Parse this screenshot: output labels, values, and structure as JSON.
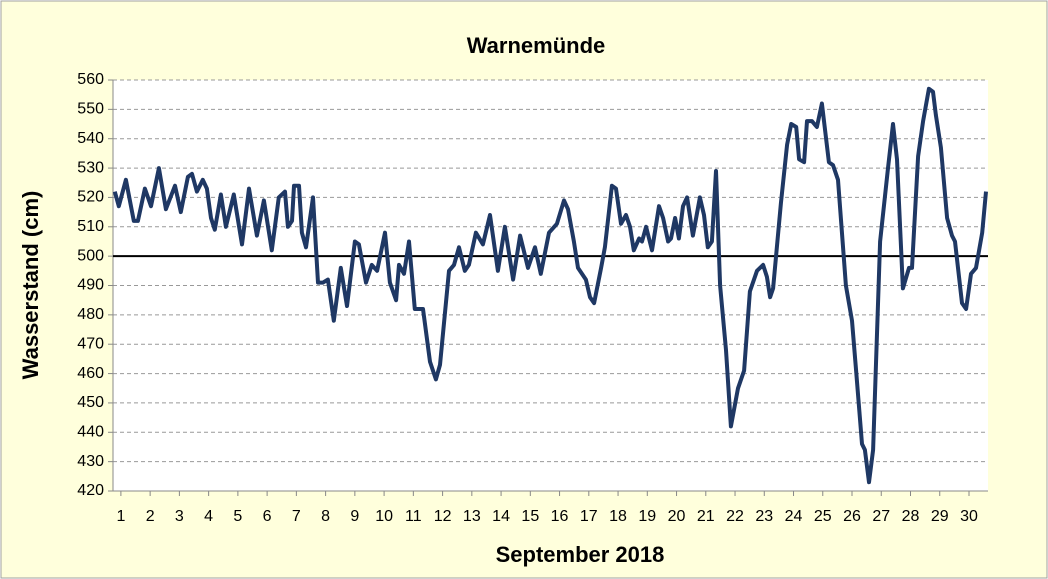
{
  "chart_data": {
    "type": "line",
    "title": "Warnemünde",
    "x_label": "September  2018",
    "y_label": "Wasserstand (cm)",
    "xlim": [
      0.73,
      30.65
    ],
    "ylim": [
      420,
      560
    ],
    "xticks": [
      1,
      2,
      3,
      4,
      5,
      6,
      7,
      8,
      9,
      10,
      11,
      12,
      13,
      14,
      15,
      16,
      17,
      18,
      19,
      20,
      21,
      22,
      23,
      24,
      25,
      26,
      27,
      28,
      29,
      30
    ],
    "yticks": [
      420,
      430,
      440,
      450,
      460,
      470,
      480,
      490,
      500,
      510,
      520,
      530,
      540,
      550,
      560
    ],
    "grid": true,
    "reference_line": 500,
    "series": [
      {
        "color": "#1f3864",
        "x": [
          0.79,
          0.93,
          1.17,
          1.44,
          1.58,
          1.82,
          2.03,
          2.3,
          2.54,
          2.85,
          3.05,
          3.29,
          3.43,
          3.6,
          3.8,
          3.94,
          4.08,
          4.21,
          4.42,
          4.59,
          4.86,
          5.14,
          5.38,
          5.65,
          5.89,
          6.16,
          6.4,
          6.61,
          6.71,
          6.85,
          6.92,
          7.09,
          7.19,
          7.33,
          7.57,
          7.74,
          7.91,
          8.08,
          8.28,
          8.52,
          8.73,
          9.0,
          9.14,
          9.38,
          9.58,
          9.76,
          10.03,
          10.2,
          10.41,
          10.51,
          10.68,
          10.85,
          11.05,
          11.33,
          11.57,
          11.77,
          11.91,
          12.22,
          12.39,
          12.56,
          12.76,
          12.9,
          13.14,
          13.38,
          13.62,
          13.89,
          14.13,
          14.41,
          14.65,
          14.92,
          15.16,
          15.36,
          15.64,
          15.91,
          16.15,
          16.29,
          16.49,
          16.63,
          16.9,
          17.04,
          17.18,
          17.42,
          17.55,
          17.79,
          17.93,
          18.1,
          18.27,
          18.41,
          18.54,
          18.72,
          18.82,
          18.96,
          19.16,
          19.4,
          19.54,
          19.71,
          19.81,
          19.95,
          20.08,
          20.22,
          20.36,
          20.56,
          20.8,
          20.94,
          21.07,
          21.21,
          21.35,
          21.49,
          21.69,
          21.86,
          22.1,
          22.31,
          22.51,
          22.75,
          22.96,
          23.09,
          23.2,
          23.3,
          23.57,
          23.78,
          23.92,
          24.09,
          24.19,
          24.36,
          24.46,
          24.63,
          24.8,
          24.97,
          25.21,
          25.35,
          25.52,
          25.79,
          26.0,
          26.14,
          26.34,
          26.44,
          26.58,
          26.72,
          26.96,
          27.23,
          27.4,
          27.54,
          27.74,
          27.95,
          28.05,
          28.26,
          28.43,
          28.63,
          28.77,
          28.87,
          29.04,
          29.25,
          29.42,
          29.52,
          29.76,
          29.9,
          30.07,
          30.24,
          30.45,
          30.58
        ],
        "values": [
          522,
          517,
          526,
          512,
          512,
          523,
          517,
          530,
          516,
          524,
          515,
          527,
          528,
          522,
          526,
          523,
          513,
          509,
          521,
          510,
          521,
          504,
          523,
          507,
          519,
          502,
          520,
          522,
          510,
          512,
          524,
          524,
          508,
          503,
          520,
          491,
          491,
          492,
          478,
          496,
          483,
          505,
          504,
          491,
          497,
          495,
          508,
          491,
          485,
          497,
          494,
          505,
          482,
          482,
          464,
          458,
          463,
          495,
          497,
          503,
          495,
          497,
          508,
          504,
          514,
          495,
          510,
          492,
          507,
          496,
          503,
          494,
          508,
          511,
          519,
          516,
          505,
          496,
          492,
          486,
          484,
          496,
          503,
          524,
          523,
          511,
          514,
          510,
          502,
          506,
          505,
          510,
          502,
          517,
          513,
          505,
          506,
          513,
          506,
          517,
          520,
          507,
          520,
          514,
          503,
          505,
          529,
          490,
          468,
          442,
          455,
          461,
          488,
          495,
          497,
          493,
          486,
          489,
          518,
          538,
          545,
          544,
          533,
          532,
          546,
          546,
          544,
          552,
          532,
          531,
          526,
          490,
          478,
          461,
          436,
          434,
          423,
          434,
          505,
          530,
          545,
          533,
          489,
          496,
          496,
          534,
          546,
          557,
          556,
          548,
          537,
          513,
          507,
          505,
          484,
          482,
          494,
          496,
          508,
          522
        ]
      }
    ]
  }
}
